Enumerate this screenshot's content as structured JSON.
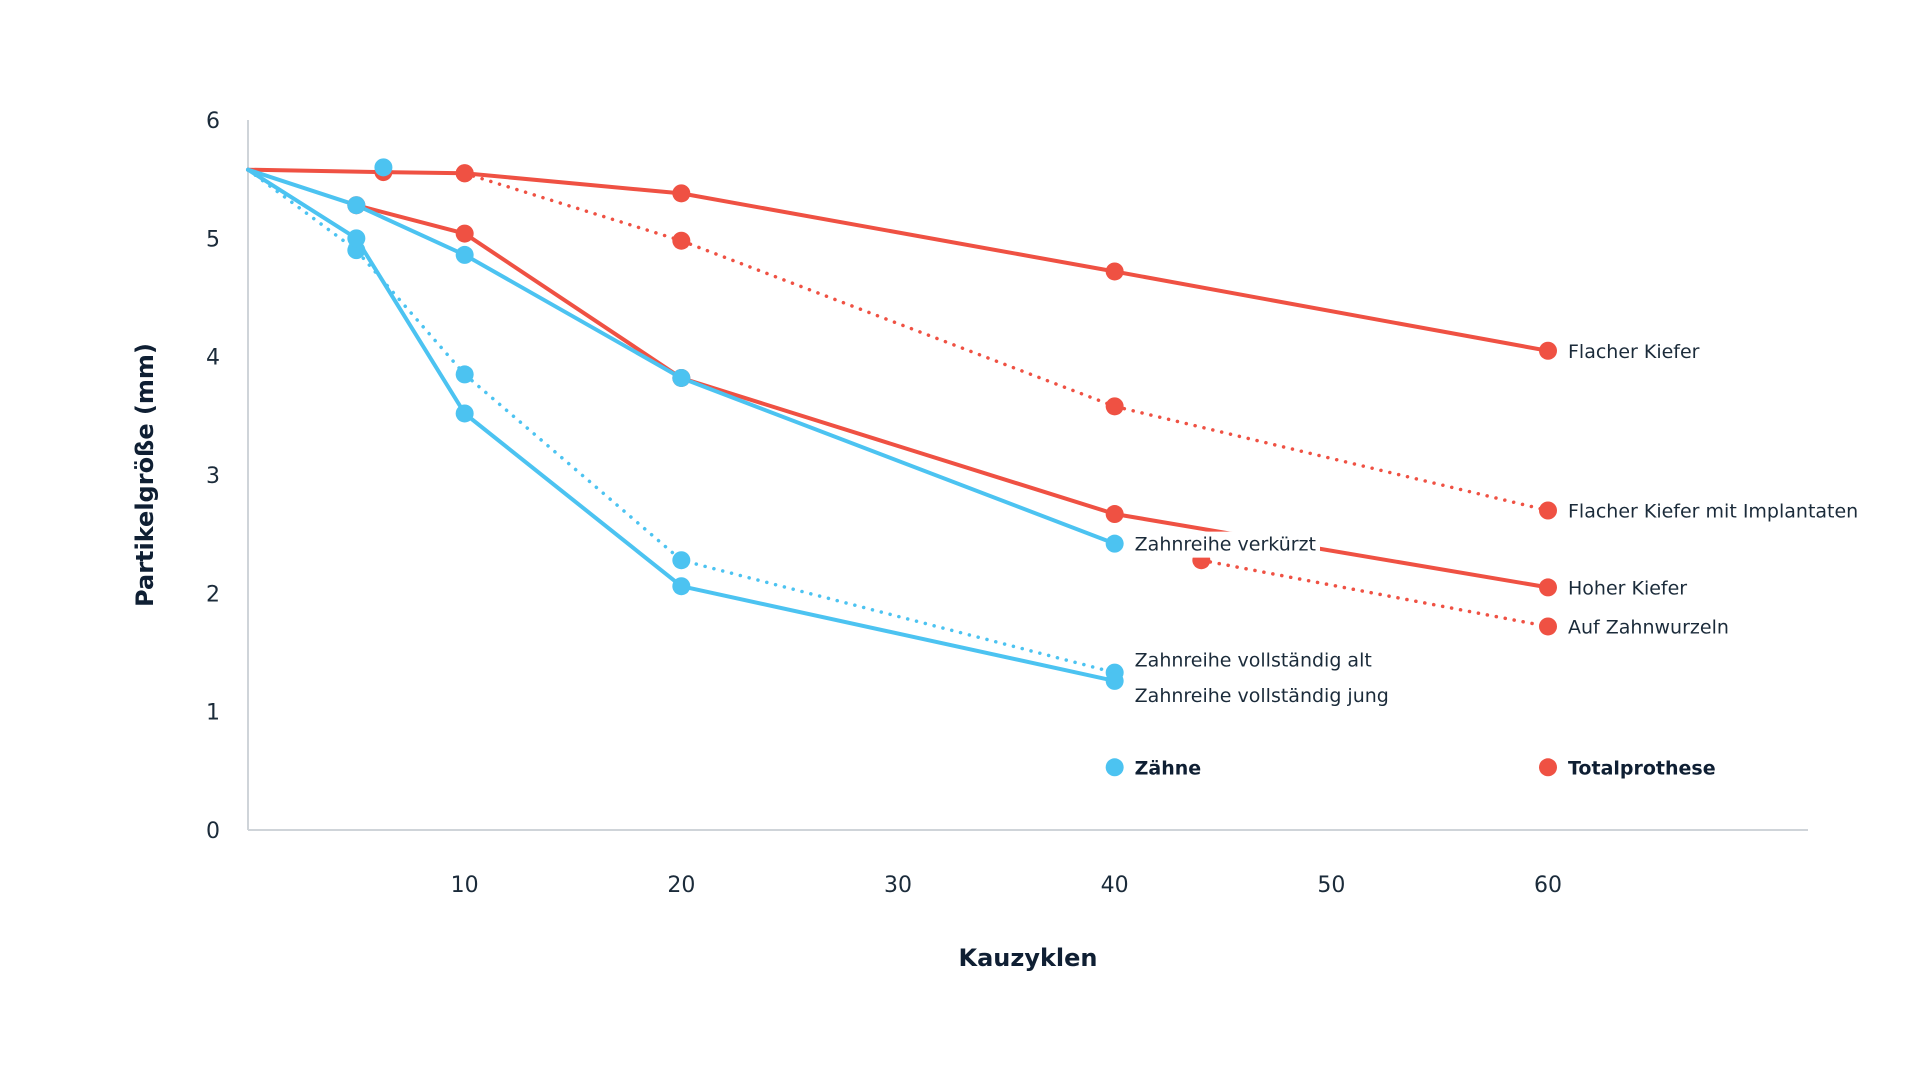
{
  "chart_data": {
    "type": "line",
    "xlabel": "Kauzyklen",
    "ylabel": "Partikelgröße (mm)",
    "xlim": [
      0,
      72
    ],
    "ylim": [
      0,
      6
    ],
    "x_ticks": [
      10,
      20,
      30,
      40,
      50,
      60
    ],
    "y_ticks": [
      0,
      1,
      2,
      3,
      4,
      5,
      6
    ],
    "grid": false,
    "colors": {
      "teeth": "#4cc3f1",
      "prosthesis": "#ef5143"
    },
    "legend": [
      {
        "name": "Zähne",
        "color": "#4cc3f1"
      },
      {
        "name": "Totalprothese",
        "color": "#ef5143"
      }
    ],
    "series": [
      {
        "name": "Flacher Kiefer",
        "group": "Totalprothese",
        "style": "solid",
        "x": [
          0,
          6.25,
          10,
          20,
          40,
          60
        ],
        "y": [
          5.58,
          5.56,
          5.55,
          5.38,
          4.72,
          4.05
        ]
      },
      {
        "name": "Flacher Kiefer mit Implantaten",
        "group": "Totalprothese",
        "style": "dotted",
        "x": [
          10,
          20,
          40,
          60
        ],
        "y": [
          5.55,
          4.98,
          3.58,
          2.7
        ]
      },
      {
        "name": "Hoher Kiefer",
        "group": "Totalprothese",
        "style": "solid",
        "x": [
          5,
          10,
          20,
          40,
          60
        ],
        "y": [
          5.28,
          5.04,
          3.82,
          2.67,
          2.05
        ]
      },
      {
        "name": "Auf Zahnwurzeln",
        "group": "Totalprothese",
        "style": "dotted",
        "x": [
          44,
          60
        ],
        "y": [
          2.28,
          1.72
        ]
      },
      {
        "name": "Zahnreihe verkürzt",
        "group": "Zähne",
        "style": "solid",
        "x": [
          0,
          5,
          10,
          20,
          40
        ],
        "y": [
          5.58,
          5.28,
          4.86,
          3.82,
          2.42
        ]
      },
      {
        "name": "Zahnreihe vollständig alt",
        "group": "Zähne",
        "style": "dotted",
        "x": [
          0,
          5,
          10,
          20,
          40
        ],
        "y": [
          5.58,
          4.9,
          3.85,
          2.28,
          1.33
        ]
      },
      {
        "name": "Zahnreihe vollständig jung",
        "group": "Zähne",
        "style": "solid",
        "x": [
          0,
          5,
          10,
          20,
          40
        ],
        "y": [
          5.58,
          5.0,
          3.52,
          2.06,
          1.26
        ]
      },
      {
        "name": "",
        "group": "Zähne",
        "style": "marker",
        "x": [
          6.25
        ],
        "y": [
          5.6
        ]
      }
    ]
  }
}
